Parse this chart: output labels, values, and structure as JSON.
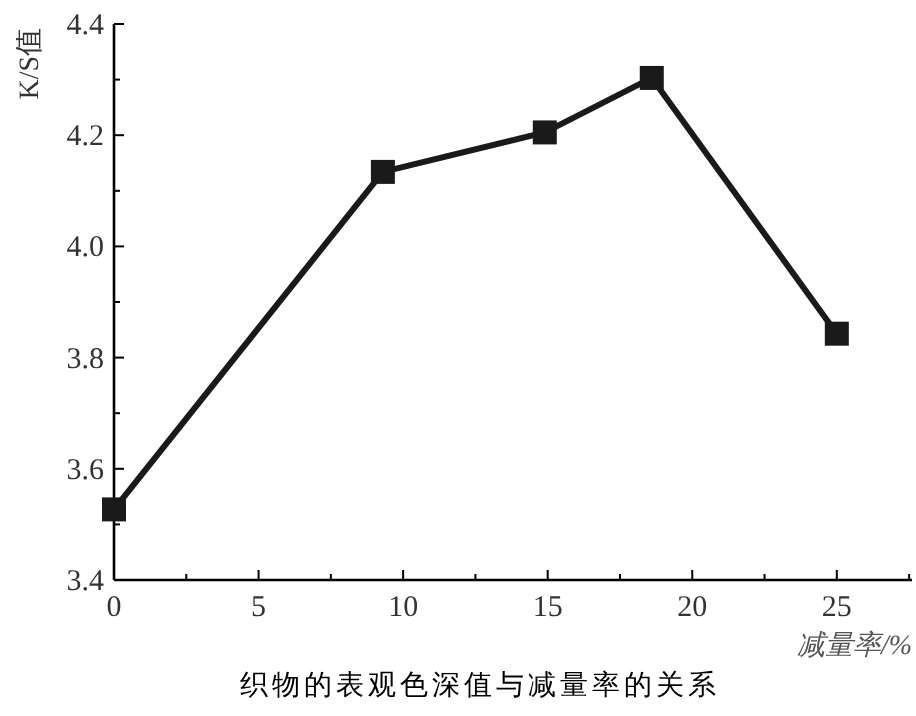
{
  "chart_data": {
    "type": "line",
    "title": "织物的表观色深值与减量率的关系",
    "xlabel": "减量率/%",
    "ylabel": "K/S值",
    "x": [
      0,
      9.3,
      14.9,
      18.6,
      25
    ],
    "series": [
      {
        "color": "#1a1a1a",
        "values": [
          3.527,
          4.134,
          4.205,
          4.303,
          3.843
        ]
      }
    ],
    "xlim": [
      0,
      27.6
    ],
    "xticks": [
      0,
      5,
      10,
      15,
      20,
      25
    ],
    "ylim": [
      3.4,
      4.4
    ],
    "yticks": [
      {
        "value": 3.4,
        "label": "3.4"
      },
      {
        "value": 3.6,
        "label": "3.6"
      },
      {
        "value": 3.8,
        "label": "3.8"
      },
      {
        "value": 4.0,
        "label": "4.0"
      },
      {
        "value": 4.2,
        "label": "4.2"
      },
      {
        "value": 4.4,
        "label": "4.4"
      }
    ],
    "marker": "square",
    "line_style": "solid"
  }
}
